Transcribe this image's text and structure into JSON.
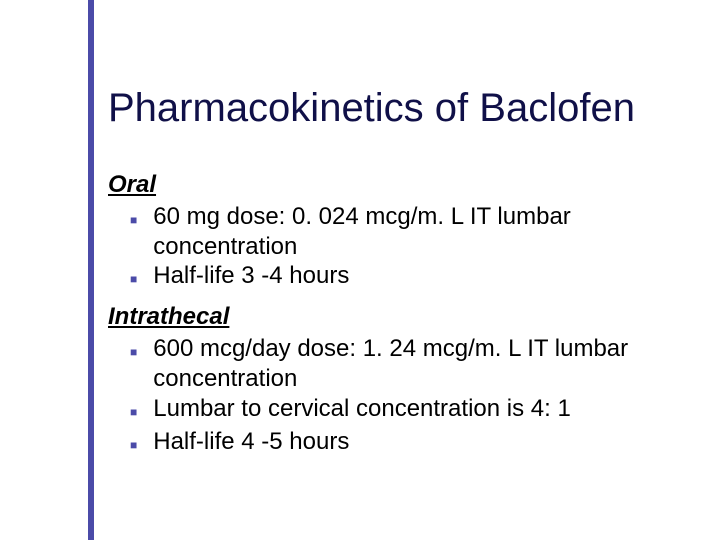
{
  "colors": {
    "accent": "#4b4ba8",
    "title_color": "#101048",
    "text_color": "#000000",
    "bullet_color": "#4b4ba8",
    "background": "#ffffff"
  },
  "title": "Pharmacokinetics of Baclofen",
  "sections": [
    {
      "heading": "Oral",
      "bullets": [
        "60 mg dose: 0. 024 mcg/m. L IT lumbar concentration",
        "Half-life 3 -4 hours"
      ]
    },
    {
      "heading": "Intrathecal",
      "bullets": [
        "600 mcg/day dose: 1. 24 mcg/m. L IT lumbar concentration",
        "Lumbar to cervical concentration is 4: 1",
        "Half-life 4 -5 hours"
      ]
    }
  ]
}
